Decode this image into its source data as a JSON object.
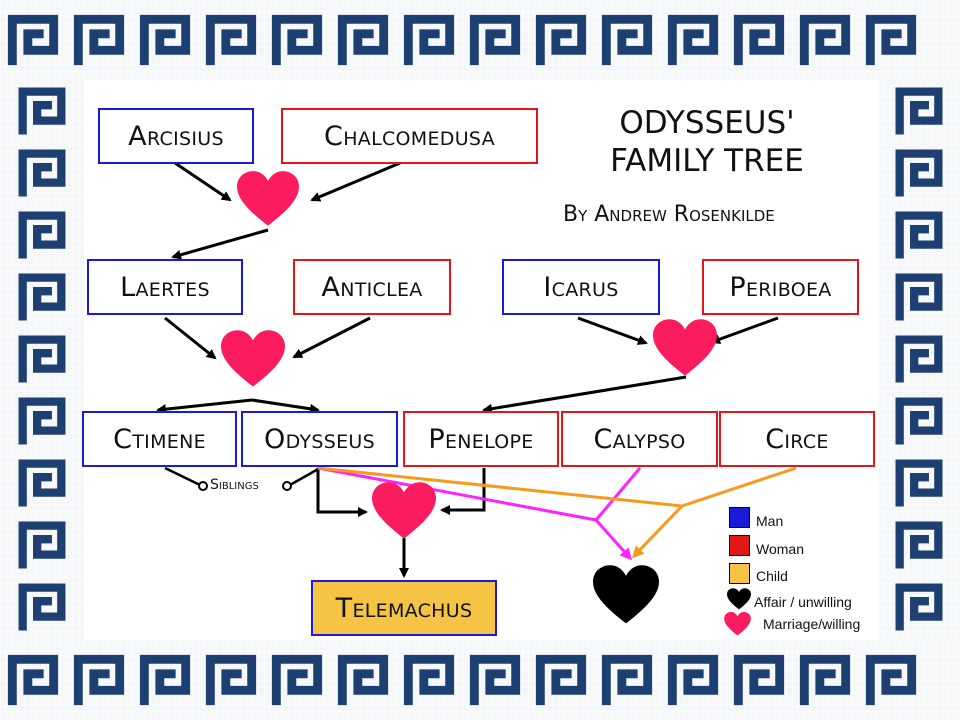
{
  "title": {
    "line1": "ODYSSEUS'",
    "line2": "FAMILY TREE",
    "byline": "By Andrew Rosenkilde"
  },
  "people": {
    "arcisius": "Arcisius",
    "chalcomedusa": "Chalcomedusa",
    "laertes": "Laertes",
    "anticlea": "Anticlea",
    "icarus": "Icarus",
    "periboea": "Periboea",
    "ctimene": "Ctimene",
    "odysseus": "Odysseus",
    "penelope": "Penelope",
    "calypso": "Calypso",
    "circe": "Circe",
    "telemachus": "Telemachus"
  },
  "siblings_label": "Siblings",
  "legend": {
    "man": "Man",
    "woman": "Woman",
    "child": "Child",
    "affair": "Affair / unwilling",
    "marriage": "Marriage/willing"
  },
  "colors": {
    "man": "#1a1adb",
    "woman": "#e01818",
    "child": "#f6c445",
    "marriage_heart": "#fb1c60",
    "affair_heart": "#000000",
    "calypso_link": "#ff22ff",
    "circe_link": "#f79a1c",
    "border_tile": "#1e3f72"
  }
}
